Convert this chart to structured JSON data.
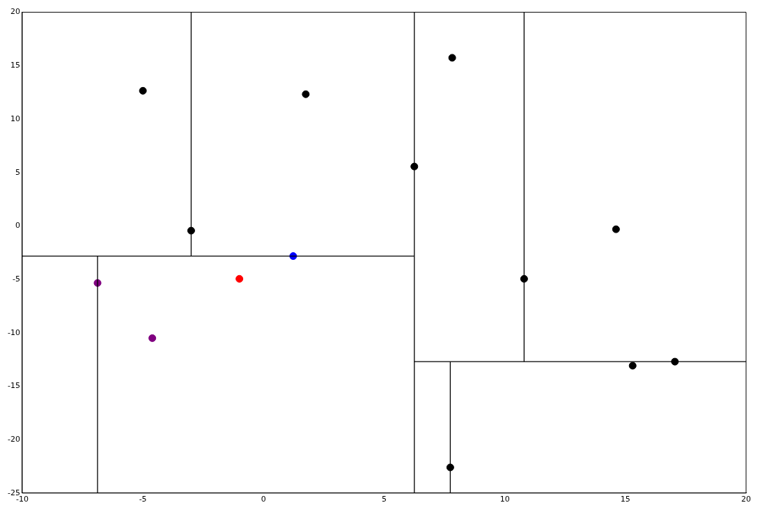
{
  "chart_data": {
    "type": "scatter",
    "xlim": [
      -10,
      20
    ],
    "ylim": [
      -25,
      20
    ],
    "xticks": [
      -10,
      -5,
      0,
      5,
      10,
      15,
      20
    ],
    "yticks": [
      -25,
      -20,
      -15,
      -10,
      -5,
      0,
      5,
      10,
      15,
      20
    ],
    "grid": false,
    "legend": false,
    "marker": "circle",
    "series": [
      {
        "type": "line",
        "color": "#000000",
        "x": [
          6.25,
          6.25
        ],
        "values": [
          -25,
          20
        ],
        "marker": "none"
      },
      {
        "type": "line",
        "color": "#000000",
        "x": [
          -10,
          6.25
        ],
        "values": [
          -2.82,
          -2.82
        ],
        "marker": "none"
      },
      {
        "type": "line",
        "color": "#000000",
        "x": [
          -3,
          -3
        ],
        "values": [
          -2.82,
          20
        ],
        "marker": "none"
      },
      {
        "type": "line",
        "color": "#000000",
        "x": [
          -6.88,
          -6.88
        ],
        "values": [
          -25,
          -2.82
        ],
        "marker": "none"
      },
      {
        "type": "line",
        "color": "#000000",
        "x": [
          6.25,
          20
        ],
        "values": [
          -12.7,
          -12.7
        ],
        "marker": "none"
      },
      {
        "type": "line",
        "color": "#000000",
        "x": [
          10.8,
          10.8
        ],
        "values": [
          -12.7,
          20
        ],
        "marker": "none"
      },
      {
        "type": "line",
        "color": "#000000",
        "x": [
          7.74,
          7.74
        ],
        "values": [
          -25,
          -12.7
        ],
        "marker": "none"
      },
      {
        "color": "#000000",
        "x": [
          -5,
          1.75,
          -3,
          6.25,
          7.82,
          14.61,
          10.8,
          15.3,
          17.05,
          7.74
        ],
        "values": [
          12.65,
          12.33,
          -0.44,
          5.56,
          15.74,
          -0.31,
          -4.95,
          -13.08,
          -12.7,
          -22.6
        ]
      },
      {
        "color": "#800080",
        "x": [
          -6.88,
          -4.61
        ],
        "values": [
          -5.34,
          -10.5
        ]
      },
      {
        "color": "#ff0000",
        "x": [
          -1.0
        ],
        "values": [
          -4.95
        ]
      },
      {
        "color": "#0000ff",
        "x": [
          1.23
        ],
        "values": [
          -2.82
        ]
      }
    ]
  }
}
